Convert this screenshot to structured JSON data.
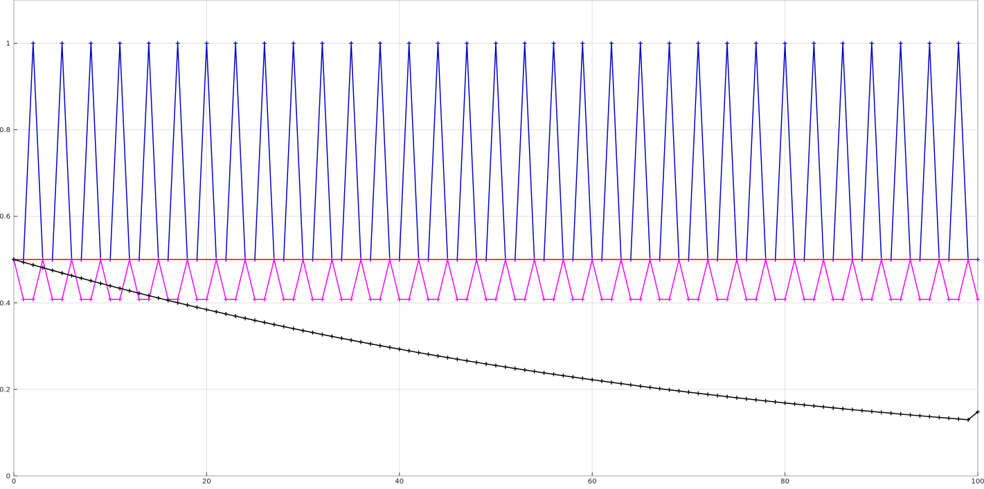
{
  "chart_data": {
    "type": "line",
    "title": "",
    "xlabel": "",
    "ylabel": "",
    "xlim": [
      0,
      100
    ],
    "ylim": [
      0,
      1.1
    ],
    "grid": true,
    "legend": "none",
    "x_ticks": [
      0,
      20,
      40,
      60,
      80,
      100
    ],
    "y_ticks": [
      0,
      0.2,
      0.4,
      0.6,
      0.8,
      1
    ],
    "x_tick_labels": [
      "0",
      "20",
      "40",
      "60",
      "80",
      "100"
    ],
    "y_tick_labels": [
      "0",
      "0.2",
      "0.4",
      "0.6",
      "0.8",
      "1"
    ],
    "x": [
      0,
      1,
      2,
      3,
      4,
      5,
      6,
      7,
      8,
      9,
      10,
      11,
      12,
      13,
      14,
      15,
      16,
      17,
      18,
      19,
      20,
      21,
      22,
      23,
      24,
      25,
      26,
      27,
      28,
      29,
      30,
      31,
      32,
      33,
      34,
      35,
      36,
      37,
      38,
      39,
      40,
      41,
      42,
      43,
      44,
      45,
      46,
      47,
      48,
      49,
      50,
      51,
      52,
      53,
      54,
      55,
      56,
      57,
      58,
      59,
      60,
      61,
      62,
      63,
      64,
      65,
      66,
      67,
      68,
      69,
      70,
      71,
      72,
      73,
      74,
      75,
      76,
      77,
      78,
      79,
      80,
      81,
      82,
      83,
      84,
      85,
      86,
      87,
      88,
      89,
      90,
      91,
      92,
      93,
      94,
      95,
      96,
      97,
      98,
      99,
      100
    ],
    "series": [
      {
        "color": "#0000cc",
        "marker": "+",
        "values": [
          0.5,
          0.5,
          1,
          0.5,
          0.5,
          1,
          0.5,
          0.5,
          1,
          0.5,
          0.5,
          1,
          0.5,
          0.5,
          1,
          0.5,
          0.5,
          1,
          0.5,
          0.5,
          1,
          0.5,
          0.5,
          1,
          0.5,
          0.5,
          1,
          0.5,
          0.5,
          1,
          0.5,
          0.5,
          1,
          0.5,
          0.5,
          1,
          0.5,
          0.5,
          1,
          0.5,
          0.5,
          1,
          0.5,
          0.5,
          1,
          0.5,
          0.5,
          1,
          0.5,
          0.5,
          1,
          0.5,
          0.5,
          1,
          0.5,
          0.5,
          1,
          0.5,
          0.5,
          1,
          0.5,
          0.5,
          1,
          0.5,
          0.5,
          1,
          0.5,
          0.5,
          1,
          0.5,
          0.5,
          1,
          0.5,
          0.5,
          1,
          0.5,
          0.5,
          1,
          0.5,
          0.5,
          1,
          0.5,
          0.5,
          1,
          0.5,
          0.5,
          1,
          0.5,
          0.5,
          1,
          0.5,
          0.5,
          1,
          0.5,
          0.5,
          1,
          0.5,
          0.5,
          1,
          0.5,
          0.5
        ]
      },
      {
        "color": "#ff00ff",
        "marker": "+",
        "values": [
          0.5,
          0.408,
          0.408,
          0.5,
          0.408,
          0.408,
          0.5,
          0.408,
          0.408,
          0.5,
          0.408,
          0.408,
          0.5,
          0.408,
          0.408,
          0.5,
          0.408,
          0.408,
          0.5,
          0.408,
          0.408,
          0.5,
          0.408,
          0.408,
          0.5,
          0.408,
          0.408,
          0.5,
          0.408,
          0.408,
          0.5,
          0.408,
          0.408,
          0.5,
          0.408,
          0.408,
          0.5,
          0.408,
          0.408,
          0.5,
          0.408,
          0.408,
          0.5,
          0.408,
          0.408,
          0.5,
          0.408,
          0.408,
          0.5,
          0.408,
          0.408,
          0.5,
          0.408,
          0.408,
          0.5,
          0.408,
          0.408,
          0.5,
          0.408,
          0.408,
          0.5,
          0.408,
          0.408,
          0.5,
          0.408,
          0.408,
          0.5,
          0.408,
          0.408,
          0.5,
          0.408,
          0.408,
          0.5,
          0.408,
          0.408,
          0.5,
          0.408,
          0.408,
          0.5,
          0.408,
          0.408,
          0.5,
          0.408,
          0.408,
          0.5,
          0.408,
          0.408,
          0.5,
          0.408,
          0.408,
          0.5,
          0.408,
          0.408,
          0.5,
          0.408,
          0.408,
          0.5,
          0.408,
          0.408,
          0.5,
          0.408
        ]
      },
      {
        "color": "#ff0000",
        "marker": "none",
        "values": [
          0.5,
          0.5,
          0.5,
          0.5,
          0.5,
          0.5,
          0.5,
          0.5,
          0.5,
          0.5,
          0.5,
          0.5,
          0.5,
          0.5,
          0.5,
          0.5,
          0.5,
          0.5,
          0.5,
          0.5,
          0.5,
          0.5,
          0.5,
          0.5,
          0.5,
          0.5,
          0.5,
          0.5,
          0.5,
          0.5,
          0.5,
          0.5,
          0.5,
          0.5,
          0.5,
          0.5,
          0.5,
          0.5,
          0.5,
          0.5,
          0.5,
          0.5,
          0.5,
          0.5,
          0.5,
          0.5,
          0.5,
          0.5,
          0.5,
          0.5,
          0.5,
          0.5,
          0.5,
          0.5,
          0.5,
          0.5,
          0.5,
          0.5,
          0.5,
          0.5,
          0.5,
          0.5,
          0.5,
          0.5,
          0.5,
          0.5,
          0.5,
          0.5,
          0.5,
          0.5,
          0.5,
          0.5,
          0.5,
          0.5,
          0.5,
          0.5,
          0.5,
          0.5,
          0.5,
          0.5,
          0.5,
          0.5,
          0.5,
          0.5,
          0.5,
          0.5,
          0.5,
          0.5,
          0.5,
          0.5,
          0.5,
          0.5,
          0.5,
          0.5,
          0.5,
          0.5,
          0.5,
          0.5,
          0.5,
          0.5,
          0.5
        ]
      },
      {
        "color": "#000000",
        "marker": "+",
        "values": [
          0.5,
          0.4937,
          0.4875,
          0.4812,
          0.4751,
          0.4689,
          0.4629,
          0.4569,
          0.4509,
          0.445,
          0.4392,
          0.4335,
          0.4278,
          0.4221,
          0.4166,
          0.4111,
          0.4056,
          0.4002,
          0.3949,
          0.3896,
          0.3844,
          0.3793,
          0.3742,
          0.3692,
          0.3643,
          0.3594,
          0.3546,
          0.3498,
          0.3451,
          0.3404,
          0.3358,
          0.3313,
          0.3268,
          0.3224,
          0.318,
          0.3137,
          0.3094,
          0.3052,
          0.301,
          0.2969,
          0.2929,
          0.2889,
          0.2849,
          0.281,
          0.2772,
          0.2734,
          0.2697,
          0.266,
          0.2623,
          0.2587,
          0.2552,
          0.2517,
          0.2482,
          0.2448,
          0.2415,
          0.2381,
          0.2349,
          0.2316,
          0.2285,
          0.2253,
          0.2222,
          0.2192,
          0.2161,
          0.2132,
          0.2102,
          0.2073,
          0.2045,
          0.2017,
          0.1989,
          0.1962,
          0.1935,
          0.1908,
          0.1882,
          0.1856,
          0.183,
          0.1805,
          0.178,
          0.1756,
          0.1732,
          0.1708,
          0.1685,
          0.1662,
          0.1639,
          0.1616,
          0.1594,
          0.1572,
          0.1551,
          0.153,
          0.1509,
          0.1488,
          0.1468,
          0.1448,
          0.1428,
          0.1408,
          0.1389,
          0.137,
          0.1351,
          0.1333,
          0.1315,
          0.1297,
          0.1479
        ]
      }
    ]
  }
}
